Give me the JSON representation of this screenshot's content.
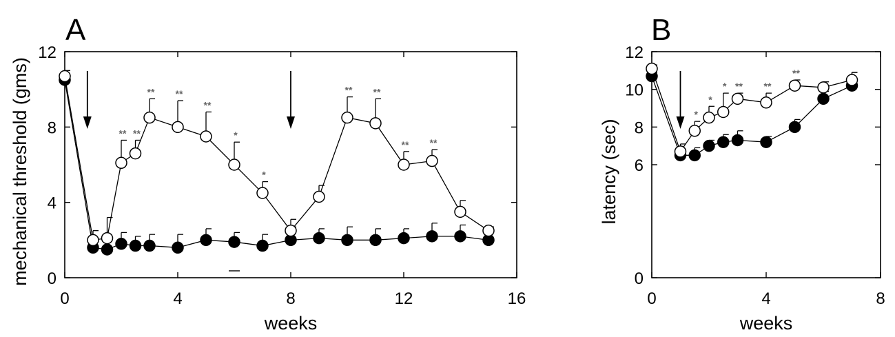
{
  "chart_data": [
    {
      "type": "line",
      "panel_label": "A",
      "xlabel": "weeks",
      "ylabel": "mechanical threshold (gms)",
      "xlim": [
        0,
        16
      ],
      "ylim": [
        0,
        12
      ],
      "xticks": [
        0,
        4,
        8,
        12,
        16
      ],
      "yticks": [
        0,
        4,
        8,
        12
      ],
      "series": [
        {
          "marker": "open-circle",
          "x": [
            0,
            1,
            1.5,
            2,
            2.5,
            3,
            4,
            5,
            6,
            7,
            8,
            9,
            10,
            11,
            12,
            13,
            14,
            15
          ],
          "y": [
            10.7,
            2.0,
            2.1,
            6.1,
            6.6,
            8.5,
            8.0,
            7.5,
            6.0,
            4.5,
            2.5,
            4.3,
            8.5,
            8.2,
            6.0,
            6.2,
            3.5,
            2.5
          ],
          "err": [
            0.3,
            0.5,
            1.1,
            1.2,
            0.7,
            1.0,
            1.4,
            1.3,
            1.2,
            0.6,
            0.6,
            0.6,
            1.1,
            1.3,
            0.7,
            0.6,
            0.6,
            0.2
          ],
          "stars": [
            "",
            "",
            "",
            "**",
            "**",
            "**",
            "**",
            "**",
            "*",
            "*",
            "",
            "",
            "**",
            "**",
            "**",
            "**",
            "",
            ""
          ]
        },
        {
          "marker": "filled-circle",
          "x": [
            0,
            1,
            1.5,
            2,
            2.5,
            3,
            4,
            5,
            6,
            7,
            8,
            9,
            10,
            11,
            12,
            13,
            14,
            15
          ],
          "y": [
            10.5,
            1.6,
            1.5,
            1.8,
            1.7,
            1.7,
            1.6,
            2.0,
            1.9,
            1.7,
            2.0,
            2.1,
            2.0,
            2.0,
            2.1,
            2.2,
            2.2,
            2.0
          ],
          "err": [
            0.2,
            0.5,
            0.7,
            0.6,
            0.5,
            0.6,
            0.7,
            0.6,
            0.5,
            0.6,
            0.7,
            0.5,
            0.7,
            0.6,
            0.5,
            0.7,
            0.6,
            0.5
          ]
        }
      ],
      "arrows_at_x": [
        0.8,
        8
      ],
      "extra_mark_at_x": 6
    },
    {
      "type": "line",
      "panel_label": "B",
      "xlabel": "weeks",
      "ylabel": "latency (sec)",
      "xlim": [
        0,
        8
      ],
      "ylim": [
        0,
        12
      ],
      "xticks": [
        0,
        4,
        8
      ],
      "yticks": [
        0,
        6,
        8,
        10,
        12
      ],
      "series": [
        {
          "marker": "open-circle",
          "x": [
            0,
            1,
            1.5,
            2,
            2.5,
            3,
            4,
            5,
            6,
            7
          ],
          "y": [
            11.1,
            6.7,
            7.8,
            8.5,
            8.8,
            9.5,
            9.3,
            10.2,
            10.1,
            10.5
          ],
          "err": [
            0.2,
            0.4,
            0.5,
            0.6,
            1.0,
            0.3,
            0.5,
            0.3,
            0.3,
            0.4
          ],
          "stars": [
            "",
            "",
            "*",
            "*",
            "*",
            "**",
            "**",
            "**",
            "",
            ""
          ]
        },
        {
          "marker": "filled-circle",
          "x": [
            0,
            1,
            1.5,
            2,
            2.5,
            3,
            4,
            5,
            6,
            7
          ],
          "y": [
            10.7,
            6.5,
            6.5,
            7.0,
            7.2,
            7.3,
            7.2,
            8.0,
            9.5,
            10.2
          ],
          "err": [
            0.2,
            0.3,
            0.4,
            0.3,
            0.4,
            0.5,
            0.3,
            0.4,
            0.4,
            0.7
          ]
        }
      ],
      "arrows_at_x": [
        1
      ]
    }
  ]
}
